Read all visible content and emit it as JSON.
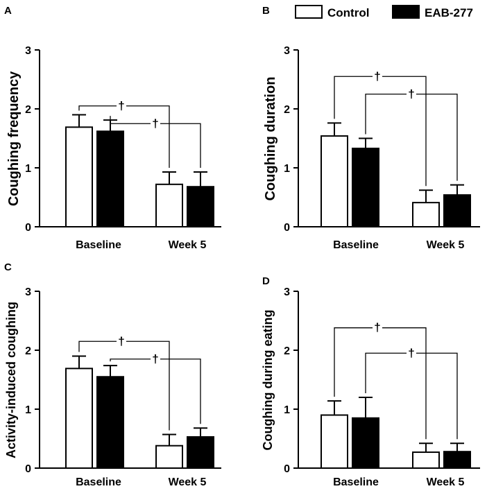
{
  "legend": {
    "control_label": "Control",
    "eab_label": "EAB-277",
    "control_color": "#ffffff",
    "eab_color": "#000000"
  },
  "chart_data": [
    {
      "type": "bar",
      "panel": "A",
      "ylabel": "Coughing frequency",
      "categories": [
        "Baseline",
        "Week 5"
      ],
      "ylim": [
        0,
        3
      ],
      "yticks": [
        "0",
        "1",
        "2",
        "3"
      ],
      "series": [
        {
          "name": "Control",
          "values": [
            1.69,
            0.72
          ],
          "errors": [
            0.21,
            0.21
          ]
        },
        {
          "name": "EAB-277",
          "values": [
            1.62,
            0.68
          ],
          "errors": [
            0.19,
            0.25
          ]
        }
      ],
      "significance": [
        {
          "series": "Control",
          "label": "†",
          "level": 2.05
        },
        {
          "series": "EAB-277",
          "label": "†",
          "level": 1.75
        }
      ]
    },
    {
      "type": "bar",
      "panel": "B",
      "ylabel": "Coughing duration",
      "categories": [
        "Baseline",
        "Week 5"
      ],
      "ylim": [
        0,
        3
      ],
      "yticks": [
        "0",
        "1",
        "2",
        "3"
      ],
      "series": [
        {
          "name": "Control",
          "values": [
            1.54,
            0.41
          ],
          "errors": [
            0.22,
            0.21
          ]
        },
        {
          "name": "EAB-277",
          "values": [
            1.33,
            0.54
          ],
          "errors": [
            0.17,
            0.17
          ]
        }
      ],
      "significance": [
        {
          "series": "Control",
          "label": "†",
          "level": 2.55
        },
        {
          "series": "EAB-277",
          "label": "†",
          "level": 2.25
        }
      ]
    },
    {
      "type": "bar",
      "panel": "C",
      "ylabel": "Activity-induced coughing",
      "categories": [
        "Baseline",
        "Week 5"
      ],
      "ylim": [
        0,
        3
      ],
      "yticks": [
        "0",
        "1",
        "2",
        "3"
      ],
      "series": [
        {
          "name": "Control",
          "values": [
            1.69,
            0.38
          ],
          "errors": [
            0.21,
            0.19
          ]
        },
        {
          "name": "EAB-277",
          "values": [
            1.55,
            0.53
          ],
          "errors": [
            0.19,
            0.15
          ]
        }
      ],
      "significance": [
        {
          "series": "Control",
          "label": "†",
          "level": 2.15
        },
        {
          "series": "EAB-277",
          "label": "†",
          "level": 1.85
        }
      ]
    },
    {
      "type": "bar",
      "panel": "D",
      "ylabel": "Coughing during eating",
      "categories": [
        "Baseline",
        "Week 5"
      ],
      "ylim": [
        0,
        3
      ],
      "yticks": [
        "0",
        "1",
        "2",
        "3"
      ],
      "series": [
        {
          "name": "Control",
          "values": [
            0.9,
            0.27
          ],
          "errors": [
            0.24,
            0.15
          ]
        },
        {
          "name": "EAB-277",
          "values": [
            0.85,
            0.28
          ],
          "errors": [
            0.35,
            0.14
          ]
        }
      ],
      "significance": [
        {
          "series": "Control",
          "label": "†",
          "level": 2.38
        },
        {
          "series": "EAB-277",
          "label": "†",
          "level": 1.95
        }
      ]
    }
  ]
}
